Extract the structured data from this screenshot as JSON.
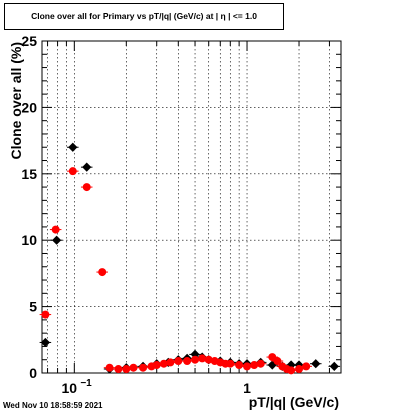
{
  "chart_data": {
    "type": "scatter",
    "title": "Clone  over all for Primary vs pT/|q| (GeV/c) at |  η  | <= 1.0",
    "xlabel": "pT/|q| (GeV/c)",
    "ylabel": "Clone  over all (%)",
    "xscale": "log",
    "xlim": [
      0.065,
      3.5
    ],
    "ylim": [
      0,
      25
    ],
    "yticks": [
      0,
      5,
      10,
      15,
      20,
      25
    ],
    "ytick_labels": [
      "0",
      "5",
      "10",
      "15",
      "20",
      "25"
    ],
    "xtick_labels": [
      {
        "value": 0.1,
        "label": "10",
        "exp": "−1"
      },
      {
        "value": 1,
        "label": "1",
        "exp": ""
      }
    ],
    "grid": true,
    "series": [
      {
        "color": "#000000",
        "marker": "diamond",
        "points": [
          [
            0.068,
            2.3
          ],
          [
            0.079,
            10.0
          ],
          [
            0.098,
            17.0
          ],
          [
            0.118,
            15.5
          ],
          [
            0.16,
            0.3
          ],
          [
            0.2,
            0.4
          ],
          [
            0.25,
            0.5
          ],
          [
            0.3,
            0.7
          ],
          [
            0.35,
            0.8
          ],
          [
            0.4,
            1.0
          ],
          [
            0.45,
            1.1
          ],
          [
            0.5,
            1.4
          ],
          [
            0.55,
            1.2
          ],
          [
            0.6,
            1.0
          ],
          [
            0.7,
            0.9
          ],
          [
            0.8,
            0.8
          ],
          [
            0.9,
            0.7
          ],
          [
            1.0,
            0.7
          ],
          [
            1.2,
            0.8
          ],
          [
            1.4,
            0.6
          ],
          [
            1.6,
            0.5
          ],
          [
            1.8,
            0.6
          ],
          [
            2.0,
            0.6
          ],
          [
            2.5,
            0.7
          ],
          [
            3.2,
            0.5
          ]
        ]
      },
      {
        "color": "#ff0000",
        "marker": "circle",
        "points": [
          [
            0.068,
            4.4
          ],
          [
            0.078,
            10.8
          ],
          [
            0.098,
            15.2
          ],
          [
            0.118,
            14.0
          ],
          [
            0.145,
            7.6
          ],
          [
            0.16,
            0.4
          ],
          [
            0.18,
            0.3
          ],
          [
            0.2,
            0.3
          ],
          [
            0.22,
            0.4
          ],
          [
            0.25,
            0.4
          ],
          [
            0.28,
            0.5
          ],
          [
            0.3,
            0.6
          ],
          [
            0.33,
            0.7
          ],
          [
            0.36,
            0.8
          ],
          [
            0.4,
            0.9
          ],
          [
            0.45,
            0.9
          ],
          [
            0.5,
            1.0
          ],
          [
            0.55,
            1.1
          ],
          [
            0.6,
            1.0
          ],
          [
            0.65,
            0.9
          ],
          [
            0.7,
            0.8
          ],
          [
            0.75,
            0.7
          ],
          [
            0.8,
            0.7
          ],
          [
            0.9,
            0.6
          ],
          [
            1.0,
            0.5
          ],
          [
            1.1,
            0.6
          ],
          [
            1.2,
            0.7
          ],
          [
            1.4,
            1.2
          ],
          [
            1.5,
            0.9
          ],
          [
            1.6,
            0.5
          ],
          [
            1.7,
            0.3
          ],
          [
            1.8,
            0.2
          ],
          [
            2.0,
            0.3
          ],
          [
            2.2,
            0.5
          ]
        ]
      }
    ]
  },
  "timestamp": "Wed Nov 10 18:58:59 2021"
}
